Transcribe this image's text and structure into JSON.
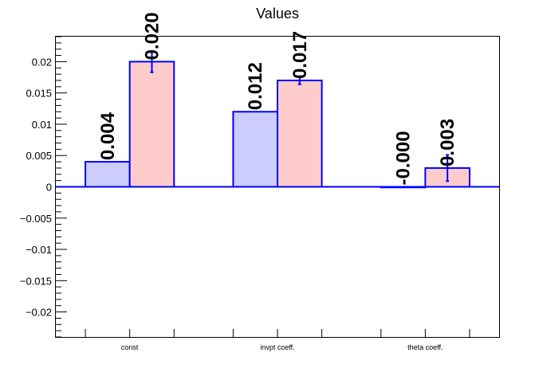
{
  "chart_data": {
    "type": "bar",
    "title": "Values",
    "xlabel": "",
    "ylabel": "",
    "categories": [
      "const",
      "invpt coeff.",
      "theta coeff."
    ],
    "series": [
      {
        "values": [
          0.004,
          0.012,
          -0.0001
        ],
        "errors": [
          0,
          0,
          0
        ],
        "labels": [
          "0.004",
          "0.012",
          "-0.000"
        ],
        "color": "#ccccff"
      },
      {
        "values": [
          0.02,
          0.017,
          0.003
        ],
        "errors": [
          0.0017,
          0.0006,
          0.0021
        ],
        "labels": [
          "0.020",
          "0.017",
          "0.003"
        ],
        "color": "#ffcccc"
      }
    ],
    "edge_color": "#0000ff",
    "ylim": [
      -0.024,
      0.024
    ],
    "yticks": [
      -0.02,
      -0.015,
      -0.01,
      -0.005,
      0,
      0.005,
      0.01,
      0.015,
      0.02
    ],
    "ytick_labels": [
      "−0.02",
      "−0.015",
      "−0.01",
      "−0.005",
      "0",
      "0.005",
      "0.01",
      "0.015",
      "0.02"
    ],
    "grid": false
  }
}
